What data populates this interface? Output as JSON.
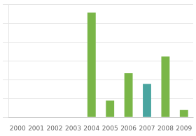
{
  "chart_data": {
    "type": "bar",
    "categories": [
      "2000",
      "2001",
      "2002",
      "2003",
      "2004",
      "2005",
      "2006",
      "2007",
      "2008",
      "2009"
    ],
    "values": [
      0,
      0,
      0,
      0,
      100,
      16,
      42,
      32,
      58,
      7
    ],
    "colors": [
      "#7ab648",
      "#7ab648",
      "#7ab648",
      "#7ab648",
      "#7ab648",
      "#7ab648",
      "#7ab648",
      "#4aa5a0",
      "#7ab648",
      "#7ab648"
    ],
    "ylim": [
      0,
      108
    ],
    "yticks": [
      0,
      18,
      36,
      54,
      72,
      90,
      108
    ],
    "grid": true,
    "tick_labels": "x"
  }
}
